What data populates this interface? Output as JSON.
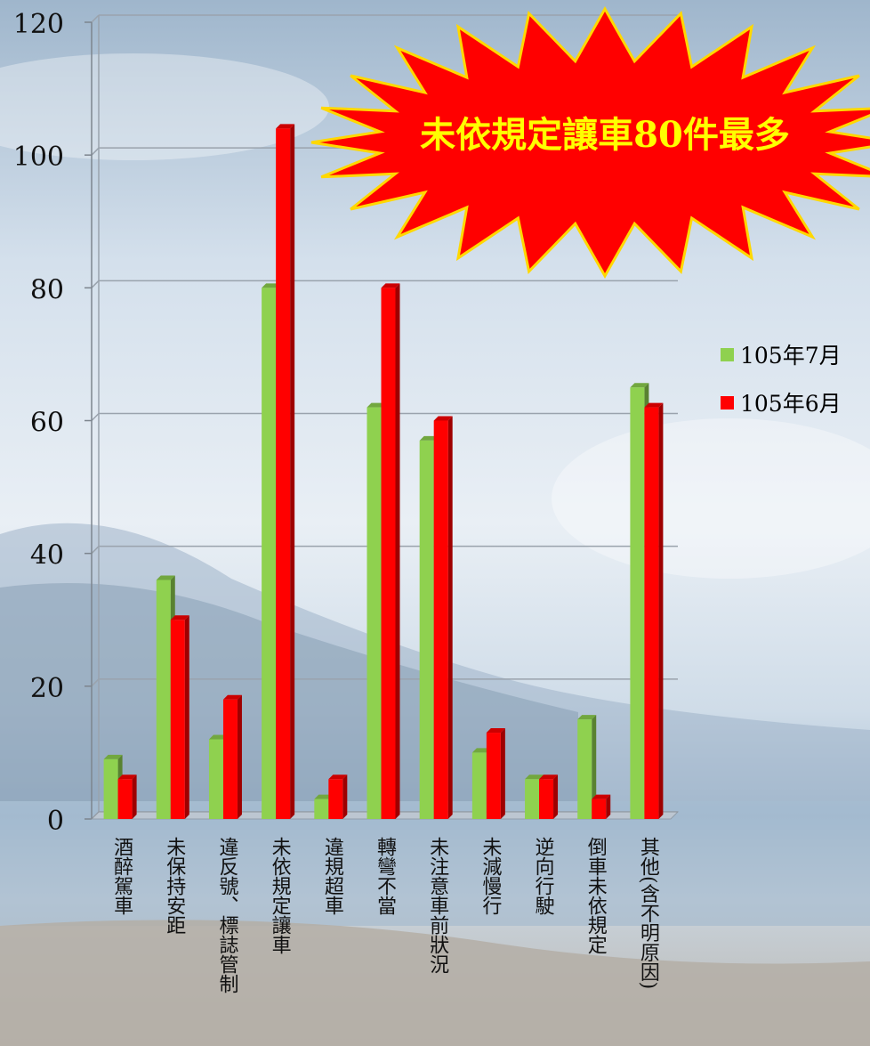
{
  "chart_data": {
    "type": "bar",
    "categories": [
      "酒醉駕車",
      "未保持安距",
      "違反號、標誌管制",
      "未依規定讓車",
      "違規超車",
      "轉彎不當",
      "未注意車前狀況",
      "未減慢行",
      "逆向行駛",
      "倒車未依規定",
      "其他(含不明原因)"
    ],
    "series": [
      {
        "name": "105年7月",
        "color": "#8fd14f",
        "values": [
          9,
          36,
          12,
          80,
          3,
          62,
          57,
          10,
          6,
          15,
          65
        ]
      },
      {
        "name": "105年6月",
        "color": "#ff0000",
        "values": [
          6,
          30,
          18,
          104,
          6,
          80,
          60,
          13,
          6,
          3,
          62
        ]
      }
    ],
    "yticks": [
      0,
      20,
      40,
      60,
      80,
      100,
      120
    ],
    "ylim": [
      0,
      120
    ],
    "grid": true,
    "legend_position": "right",
    "annotation": "未依規定讓車80件最多"
  }
}
